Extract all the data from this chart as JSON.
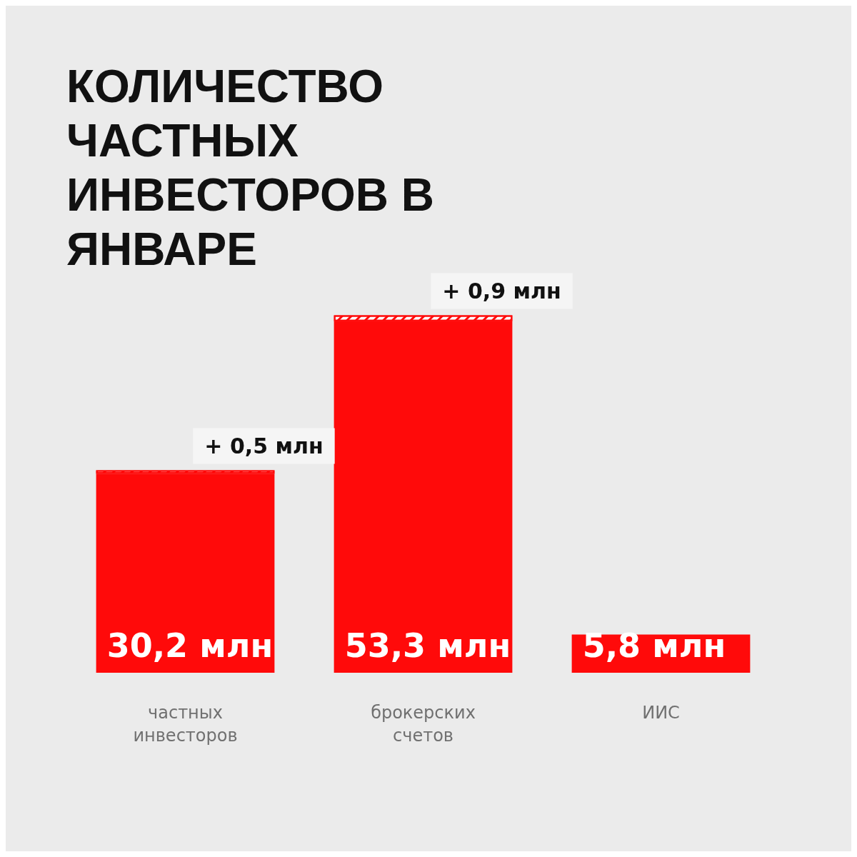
{
  "chart_data": {
    "type": "bar",
    "title": "КОЛИЧЕСТВО ЧАСТНЫХ ИНВЕСТОРОВ В ЯНВАРЕ",
    "categories": [
      "частных инвесторов",
      "брокерских счетов",
      "ИИС"
    ],
    "stacked": true,
    "series": [
      {
        "color": "#ff0a0a",
        "values": [
          30.2,
          53.3,
          5.8
        ],
        "value_labels": [
          "30,2 млн",
          "53,3 млн",
          "5,8 млн"
        ]
      },
      {
        "color": "#ff0a0a",
        "values": [
          0.5,
          0.9,
          null
        ],
        "value_labels": [
          "+ 0,5 млн",
          "+ 0,9 млн",
          null
        ]
      }
    ]
  }
}
